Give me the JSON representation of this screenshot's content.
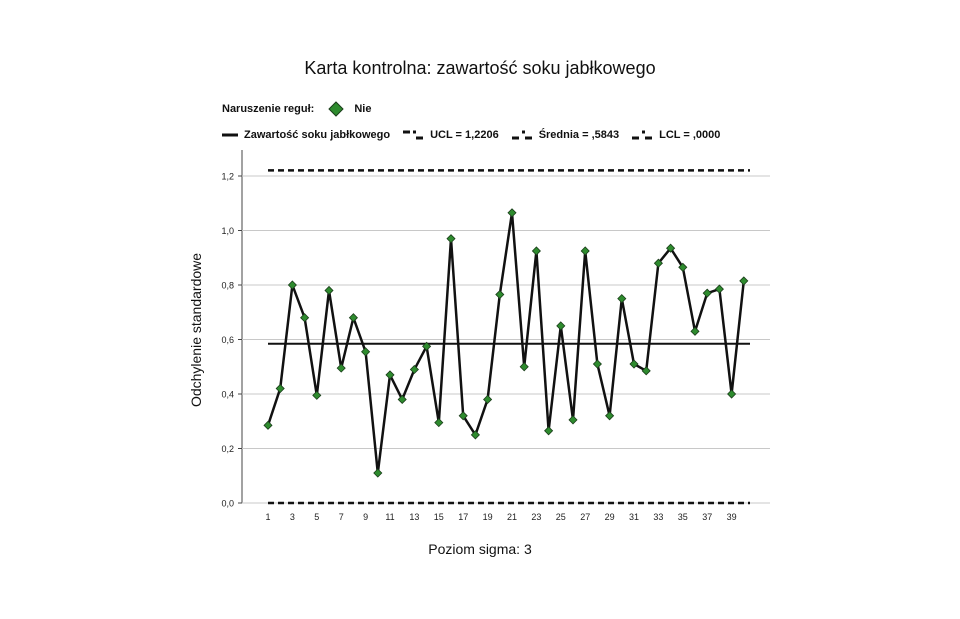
{
  "chart_data": {
    "type": "line",
    "title": "Karta kontrolna: zawartość soku jabłkowego",
    "xlabel": "Poziom sigma: 3",
    "ylabel": "Odchylenie standardowe",
    "ylim": [
      0,
      1.2
    ],
    "yticks": [
      "0,0",
      "0,2",
      "0,4",
      "0,6",
      "0,8",
      "1,0",
      "1,2"
    ],
    "xticks": [
      "1",
      "3",
      "5",
      "7",
      "9",
      "11",
      "13",
      "15",
      "17",
      "19",
      "21",
      "23",
      "25",
      "27",
      "29",
      "31",
      "33",
      "35",
      "37",
      "39"
    ],
    "grid": true,
    "legend": {
      "violation_label": "Naruszenie reguł:",
      "violation_value": "Nie",
      "series_label": "Zawartość soku jabłkowego",
      "ucl_label": "UCL = 1,2206",
      "mean_label": "Średnia = ,5843",
      "lcl_label": "LCL = ,0000"
    },
    "ucl": 1.2206,
    "mean": 0.5843,
    "lcl": 0.0,
    "x": [
      1,
      2,
      3,
      4,
      5,
      6,
      7,
      8,
      9,
      10,
      11,
      12,
      13,
      14,
      15,
      16,
      17,
      18,
      19,
      20,
      21,
      22,
      23,
      24,
      25,
      26,
      27,
      28,
      29,
      30,
      31,
      32,
      33,
      34,
      35,
      36,
      37,
      38,
      39,
      40
    ],
    "series": [
      {
        "name": "Zawartość soku jabłkowego",
        "values": [
          0.285,
          0.42,
          0.8,
          0.68,
          0.395,
          0.78,
          0.495,
          0.68,
          0.555,
          0.11,
          0.47,
          0.38,
          0.49,
          0.575,
          0.295,
          0.97,
          0.32,
          0.25,
          0.38,
          0.765,
          1.065,
          0.5,
          0.925,
          0.265,
          0.65,
          0.305,
          0.925,
          0.51,
          0.32,
          0.75,
          0.51,
          0.485,
          0.88,
          0.935,
          0.865,
          0.63,
          0.77,
          0.785,
          0.4,
          0.815
        ]
      }
    ],
    "colors": {
      "line": "#111111",
      "marker": "#2e8b2e",
      "grid": "#c8c8c8"
    }
  }
}
